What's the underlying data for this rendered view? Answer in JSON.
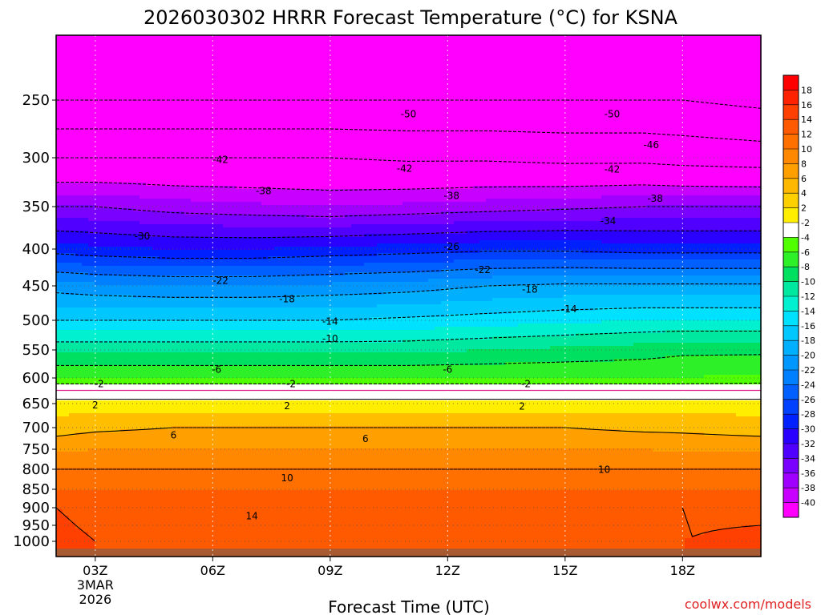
{
  "chart_data": {
    "type": "heatmap",
    "title": "2026030302 HRRR Forecast Temperature (°C) for KSNA",
    "xlabel": "Forecast Time (UTC)",
    "ylabel": "",
    "x_ticks": [
      {
        "hour": 3,
        "label": "03Z",
        "sub": [
          "3MAR",
          "2026"
        ]
      },
      {
        "hour": 6,
        "label": "06Z",
        "sub": []
      },
      {
        "hour": 9,
        "label": "09Z",
        "sub": []
      },
      {
        "hour": 12,
        "label": "12Z",
        "sub": []
      },
      {
        "hour": 15,
        "label": "15Z",
        "sub": []
      },
      {
        "hour": 18,
        "label": "18Z",
        "sub": []
      }
    ],
    "xlim": [
      2,
      20
    ],
    "y_ticks": [
      250,
      300,
      350,
      400,
      450,
      500,
      550,
      600,
      650,
      700,
      750,
      800,
      850,
      900,
      950,
      1000
    ],
    "ylim_hPa": [
      200,
      1025
    ],
    "hour_grid": [
      2,
      3,
      5,
      7,
      9,
      11,
      13,
      15,
      17,
      18,
      20
    ],
    "temperature_by_pressure": [
      {
        "p": 200,
        "t": [
          -53,
          -53,
          -53,
          -52,
          -51,
          -51,
          -52,
          -52,
          -53,
          -53,
          -53
        ]
      },
      {
        "p": 250,
        "t": [
          -50,
          -50,
          -50,
          -50,
          -50,
          -50,
          -50,
          -50,
          -50,
          -50,
          -51
        ]
      },
      {
        "p": 300,
        "t": [
          -42,
          -42,
          -42,
          -42,
          -42,
          -42.5,
          -42.5,
          -43,
          -43,
          -43.5,
          -44
        ]
      },
      {
        "p": 350,
        "t": [
          -34,
          -34,
          -35,
          -35.5,
          -36,
          -35.5,
          -35,
          -34.5,
          -34,
          -34,
          -34
        ]
      },
      {
        "p": 400,
        "t": [
          -27,
          -27.5,
          -28,
          -28,
          -27.5,
          -27,
          -26.5,
          -26.5,
          -27,
          -27,
          -27
        ]
      },
      {
        "p": 450,
        "t": [
          -19,
          -19.5,
          -20,
          -20,
          -19.5,
          -19,
          -18,
          -17.5,
          -17.5,
          -17.5,
          -17.5
        ]
      },
      {
        "p": 500,
        "t": [
          -14,
          -14,
          -14,
          -14,
          -14,
          -13.5,
          -13,
          -12.5,
          -12,
          -12,
          -12
        ]
      },
      {
        "p": 550,
        "t": [
          -8.5,
          -8.5,
          -8.5,
          -8.5,
          -8.5,
          -8.5,
          -8,
          -7.5,
          -7,
          -6.5,
          -6.5
        ]
      },
      {
        "p": 600,
        "t": [
          -4,
          -4,
          -4,
          -4,
          -4,
          -4,
          -4,
          -4,
          -4,
          -4,
          -3.5
        ]
      },
      {
        "p": 620,
        "t": [
          -0.5,
          -0.5,
          -0.5,
          -0.5,
          -0.5,
          -0.5,
          -0.5,
          -0.5,
          -0.5,
          -0.5,
          -0.5
        ]
      },
      {
        "p": 650,
        "t": [
          3,
          3,
          3,
          3,
          3,
          3,
          3,
          3,
          3,
          3,
          3
        ]
      },
      {
        "p": 700,
        "t": [
          5,
          5.5,
          6,
          6,
          6,
          6,
          6,
          6,
          5.5,
          5.5,
          5
        ]
      },
      {
        "p": 750,
        "t": [
          7.5,
          8,
          8,
          8,
          8,
          8,
          8,
          8,
          8,
          7.5,
          7.5
        ]
      },
      {
        "p": 800,
        "t": [
          10,
          10,
          10,
          10,
          10,
          10,
          10,
          10,
          10,
          10,
          10
        ]
      },
      {
        "p": 850,
        "t": [
          12,
          12,
          12,
          12,
          12,
          12,
          12,
          12,
          12,
          12,
          12
        ]
      },
      {
        "p": 900,
        "t": [
          14,
          13,
          13.5,
          14,
          13,
          13,
          13,
          13,
          13.5,
          14,
          13.5
        ]
      },
      {
        "p": 950,
        "t": [
          14.5,
          13.5,
          13.5,
          13.5,
          13.5,
          13.5,
          13.5,
          13.5,
          13.5,
          13.5,
          14
        ]
      },
      {
        "p": 1000,
        "t": [
          15,
          14,
          13.5,
          13.5,
          13.5,
          13.5,
          13.5,
          13.5,
          13.5,
          14,
          15.5
        ]
      }
    ],
    "contour_levels": [
      -50,
      -46,
      -42,
      -38,
      -34,
      -30,
      -26,
      -22,
      -18,
      -14,
      -10,
      -6,
      -2,
      2,
      6,
      10,
      14
    ],
    "contour_labels": [
      {
        "text": "-50",
        "hour": 11,
        "p": 262
      },
      {
        "text": "-50",
        "hour": 16.2,
        "p": 262
      },
      {
        "text": "-46",
        "hour": 17.2,
        "p": 289
      },
      {
        "text": "-42",
        "hour": 6.2,
        "p": 302
      },
      {
        "text": "-42",
        "hour": 10.9,
        "p": 311
      },
      {
        "text": "-42",
        "hour": 16.2,
        "p": 312
      },
      {
        "text": "-38",
        "hour": 7.3,
        "p": 334
      },
      {
        "text": "-38",
        "hour": 12.1,
        "p": 339
      },
      {
        "text": "-38",
        "hour": 17.3,
        "p": 342
      },
      {
        "text": "-34",
        "hour": 16.1,
        "p": 367
      },
      {
        "text": "-30",
        "hour": 4.2,
        "p": 385
      },
      {
        "text": "-26",
        "hour": 12.1,
        "p": 397
      },
      {
        "text": "-22",
        "hour": 6.2,
        "p": 443
      },
      {
        "text": "-22",
        "hour": 12.9,
        "p": 428
      },
      {
        "text": "-18",
        "hour": 7.9,
        "p": 469
      },
      {
        "text": "-18",
        "hour": 14.1,
        "p": 455
      },
      {
        "text": "-14",
        "hour": 9.0,
        "p": 502
      },
      {
        "text": "-14",
        "hour": 15.1,
        "p": 484
      },
      {
        "text": "-10",
        "hour": 9.0,
        "p": 531
      },
      {
        "text": "-6",
        "hour": 6.1,
        "p": 585
      },
      {
        "text": "-6",
        "hour": 12.0,
        "p": 585
      },
      {
        "text": "-2",
        "hour": 3.1,
        "p": 612
      },
      {
        "text": "-2",
        "hour": 8.0,
        "p": 612
      },
      {
        "text": "-2",
        "hour": 14.0,
        "p": 612
      },
      {
        "text": "2",
        "hour": 3.0,
        "p": 653
      },
      {
        "text": "2",
        "hour": 7.9,
        "p": 655
      },
      {
        "text": "2",
        "hour": 13.9,
        "p": 656
      },
      {
        "text": "6",
        "hour": 5.0,
        "p": 718
      },
      {
        "text": "6",
        "hour": 9.9,
        "p": 726
      },
      {
        "text": "10",
        "hour": 7.9,
        "p": 822
      },
      {
        "text": "10",
        "hour": 16.0,
        "p": 801
      },
      {
        "text": "14",
        "hour": 7.0,
        "p": 924
      }
    ],
    "colorbar": {
      "ticks": [
        "18",
        "16",
        "14",
        "12",
        "10",
        "8",
        "6",
        "4",
        "2",
        "-2",
        "-4",
        "-6",
        "-8",
        "-10",
        "-12",
        "-14",
        "-16",
        "-18",
        "-20",
        "-22",
        "-24",
        "-26",
        "-28",
        "-30",
        "-32",
        "-34",
        "-36",
        "-38",
        "-40"
      ],
      "colors": [
        "#ff0000",
        "#ff2200",
        "#ff4000",
        "#ff5a00",
        "#ff7000",
        "#ff8800",
        "#ffa000",
        "#ffb800",
        "#ffd000",
        "#ffee00",
        "#ffffff",
        "#50ff00",
        "#2ef028",
        "#00e060",
        "#00e8a0",
        "#00f0d0",
        "#00e0ff",
        "#00c8ff",
        "#00b0ff",
        "#0098ff",
        "#0080ff",
        "#0060ff",
        "#0040ff",
        "#0020ff",
        "#2a00ff",
        "#5000ff",
        "#7a00ff",
        "#a000ff",
        "#c800ff",
        "#ff00ff"
      ]
    },
    "footer_left_hidden": "",
    "credit": "coolwx.com/models"
  }
}
